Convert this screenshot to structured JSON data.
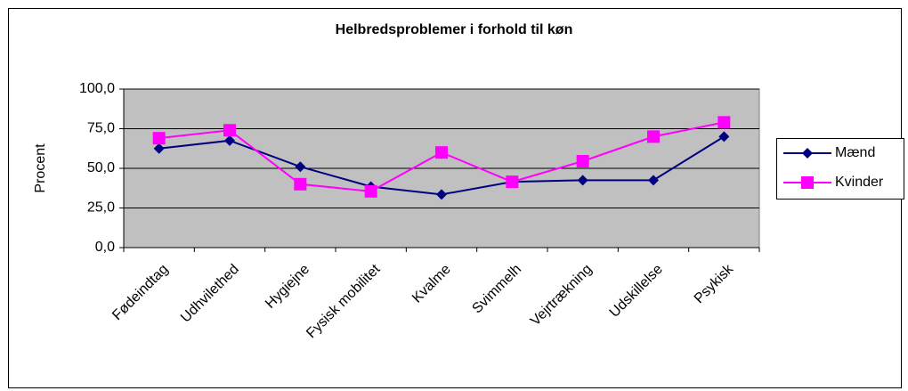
{
  "chart_data": {
    "type": "line",
    "title": "Helbredsproblemer i forhold til køn",
    "ylabel": "Procent",
    "categories": [
      "Fødeindtag",
      "Udhvilethed",
      "Hygiejne",
      "Fysisk mobilitet",
      "Kvalme",
      "Svimmelh",
      "Vejrtrækning",
      "Udskillelse",
      "Psykisk"
    ],
    "series": [
      {
        "name": "Mænd",
        "color": "#000080",
        "marker": "diamond",
        "values": [
          62.5,
          67.5,
          51,
          38.5,
          33.5,
          41.5,
          42.5,
          42.5,
          70
        ]
      },
      {
        "name": "Kvinder",
        "color": "#ff00ff",
        "marker": "square",
        "values": [
          69,
          74,
          40,
          35.5,
          60,
          41.5,
          54.5,
          70,
          79
        ]
      }
    ],
    "ylim": [
      0,
      100
    ],
    "yticks": [
      {
        "value": 0,
        "label": "0,0"
      },
      {
        "value": 25,
        "label": "25,0"
      },
      {
        "value": 50,
        "label": "50,0"
      },
      {
        "value": 75,
        "label": "75,0"
      },
      {
        "value": 100,
        "label": "100,0"
      }
    ],
    "grid": true,
    "legend": "right"
  }
}
